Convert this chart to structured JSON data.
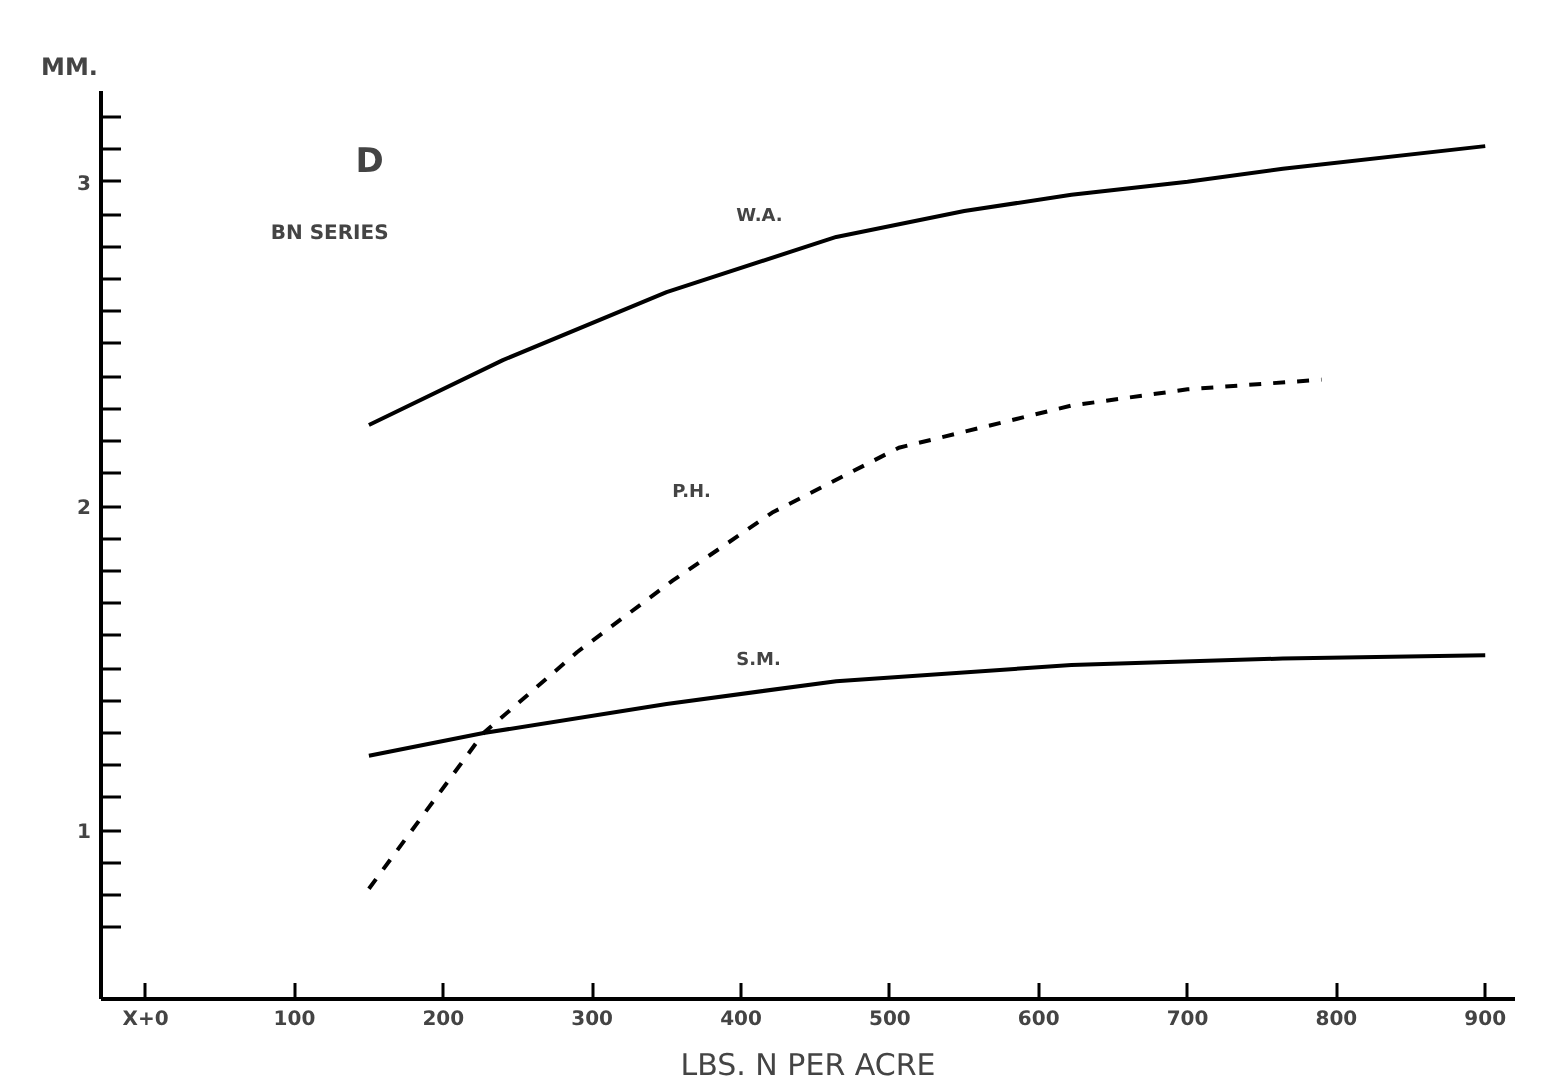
{
  "chart_data": {
    "type": "line",
    "title": "D",
    "subtitle": "BN SERIES",
    "xlabel": "LBS. N PER ACRE",
    "ylabel": "MM.",
    "xlim": [
      -30,
      920
    ],
    "ylim": [
      0.48,
      3.28
    ],
    "xticks": [
      {
        "value": 0,
        "label": "X+0"
      },
      100,
      200,
      300,
      400,
      500,
      600,
      700,
      800,
      900
    ],
    "yticks": [
      {
        "value": 0.7,
        "label": null
      },
      {
        "value": 0.8,
        "label": null
      },
      {
        "value": 0.9,
        "label": null
      },
      1,
      {
        "value": 1.1,
        "label": null
      },
      {
        "value": 1.2,
        "label": null
      },
      {
        "value": 1.3,
        "label": null
      },
      {
        "value": 1.4,
        "label": null
      },
      {
        "value": 1.5,
        "label": null
      },
      {
        "value": 1.6,
        "label": null
      },
      {
        "value": 1.7,
        "label": null
      },
      {
        "value": 1.8,
        "label": null
      },
      {
        "value": 1.9,
        "label": null
      },
      2,
      {
        "value": 2.1,
        "label": null
      },
      {
        "value": 2.2,
        "label": null
      },
      {
        "value": 2.3,
        "label": null
      },
      {
        "value": 2.4,
        "label": null
      },
      {
        "value": 2.5,
        "label": null
      },
      {
        "value": 2.6,
        "label": null
      },
      {
        "value": 2.7,
        "label": null
      },
      {
        "value": 2.8,
        "label": null
      },
      {
        "value": 2.9,
        "label": null
      },
      3,
      {
        "value": 3.1,
        "label": null
      },
      {
        "value": 3.2,
        "label": null
      }
    ],
    "grid": false,
    "marker": "none",
    "series": [
      {
        "name": "W.A.",
        "color": "#000000",
        "line_style": "solid",
        "x": [
          150,
          240,
          350,
          464,
          550,
          622,
          700,
          764,
          900
        ],
        "values": [
          2.25,
          2.45,
          2.66,
          2.83,
          2.91,
          2.96,
          3.0,
          3.04,
          3.11
        ]
      },
      {
        "name": "P.H.",
        "color": "#000000",
        "line_style": "dashed",
        "x": [
          150,
          227,
          290,
          354,
          421,
          506,
          622,
          700,
          790
        ],
        "values": [
          0.82,
          1.3,
          1.55,
          1.77,
          1.98,
          2.18,
          2.31,
          2.36,
          2.39
        ]
      },
      {
        "name": "S.M.",
        "color": "#000000",
        "line_style": "solid",
        "x": [
          150,
          227,
          350,
          464,
          622,
          764,
          900
        ],
        "values": [
          1.23,
          1.3,
          1.39,
          1.46,
          1.51,
          1.53,
          1.54
        ]
      }
    ]
  }
}
